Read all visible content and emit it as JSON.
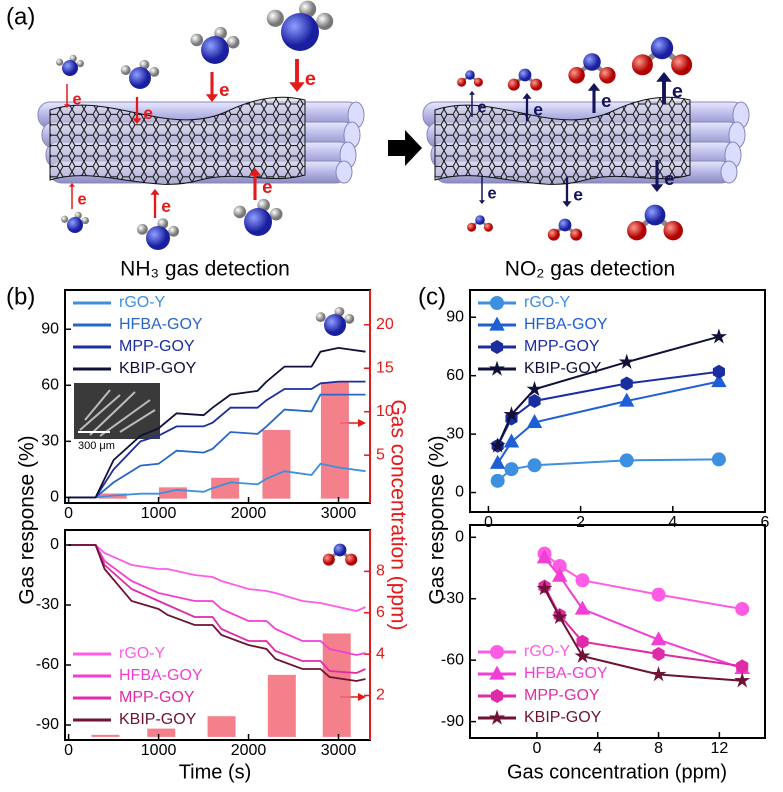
{
  "figure": {
    "panel_labels": [
      "(a)",
      "(b)",
      "(c)"
    ],
    "captions": [
      "NH₃ gas detection",
      "NO₂ gas detection"
    ],
    "electron_label": "e",
    "inset_scale": "300 μm"
  },
  "chart_data": [
    {
      "type": "line",
      "ylabel": "Gas response (%)",
      "y2label": "Gas concentration (ppm)",
      "legend": "upper left",
      "x": [
        0,
        300,
        500,
        800,
        1000,
        1200,
        1500,
        1600,
        1800,
        2100,
        2200,
        2400,
        2700,
        2800,
        3000,
        3300
      ],
      "series": [
        {
          "name": "rGO-Y",
          "color": "#3d8fe0",
          "values": [
            0,
            0,
            1,
            2,
            2,
            4,
            3,
            5,
            8,
            7,
            10,
            14,
            12,
            18,
            16,
            14
          ]
        },
        {
          "name": "HFBA-GOY",
          "color": "#2a66c8",
          "values": [
            0,
            0,
            8,
            17,
            18,
            25,
            24,
            26,
            35,
            34,
            38,
            47,
            46,
            55,
            55,
            55
          ]
        },
        {
          "name": "MPP-GOY",
          "color": "#1a2ea0",
          "values": [
            0,
            0,
            15,
            30,
            33,
            38,
            38,
            40,
            48,
            48,
            52,
            58,
            58,
            61,
            62,
            62
          ]
        },
        {
          "name": "KBIP-GOY",
          "color": "#10103a",
          "values": [
            0,
            0,
            20,
            33,
            37,
            45,
            44,
            48,
            55,
            57,
            62,
            70,
            70,
            78,
            80,
            78
          ]
        }
      ],
      "bars": {
        "x": [
          490,
          1160,
          1740,
          2310,
          2960
        ],
        "values": [
          0.6,
          1.3,
          2.4,
          7.9,
          13.4
        ],
        "color": "#f26a78",
        "axis": "y2"
      },
      "xlim": [
        -40,
        3350
      ],
      "ylim": [
        -3,
        111
      ],
      "y2lim": [
        -0.5,
        24
      ],
      "xticks": [
        0,
        1000,
        2000,
        3000
      ],
      "yticks": [
        0,
        30,
        60,
        90
      ],
      "y2ticks": [
        5,
        10,
        15,
        20
      ]
    },
    {
      "type": "line",
      "xlabel": "Time (s)",
      "legend": "lower left",
      "x": [
        0,
        300,
        400,
        700,
        1000,
        1100,
        1400,
        1600,
        1700,
        2000,
        2200,
        2300,
        2600,
        2800,
        2900,
        3200,
        3300
      ],
      "series": [
        {
          "name": "rGO-Y",
          "color": "#ff5ce6",
          "values": [
            0,
            0,
            -4,
            -10,
            -12,
            -12,
            -15,
            -16,
            -18,
            -22,
            -23,
            -24,
            -28,
            -29,
            -30,
            -33,
            -31
          ]
        },
        {
          "name": "HFBA-GOY",
          "color": "#f33ed6",
          "values": [
            0,
            0,
            -8,
            -18,
            -24,
            -25,
            -28,
            -28,
            -32,
            -38,
            -38,
            -42,
            -48,
            -48,
            -52,
            -55,
            -54
          ]
        },
        {
          "name": "MPP-GOY",
          "color": "#e02aa8",
          "values": [
            0,
            0,
            -10,
            -22,
            -28,
            -30,
            -36,
            -36,
            -42,
            -48,
            -48,
            -53,
            -58,
            -58,
            -63,
            -64,
            -62
          ]
        },
        {
          "name": "KBIP-GOY",
          "color": "#6e1236",
          "values": [
            0,
            0,
            -12,
            -28,
            -32,
            -35,
            -40,
            -40,
            -45,
            -50,
            -52,
            -57,
            -62,
            -62,
            -66,
            -68,
            -67
          ]
        }
      ],
      "bars": {
        "x": [
          410,
          1030,
          1700,
          2370,
          2980
        ],
        "values": [
          0.1,
          0.4,
          1,
          3,
          5
        ],
        "color": "#f26a78",
        "axis": "y2"
      },
      "xlim": [
        -40,
        3350
      ],
      "ylim": [
        -97.5,
        7.5
      ],
      "y2lim": [
        -0.15,
        10
      ],
      "xticks": [
        0,
        1000,
        2000,
        3000
      ],
      "yticks": [
        -90,
        -60,
        -30,
        0
      ],
      "y2ticks": [
        2,
        4,
        6,
        8
      ]
    },
    {
      "type": "line",
      "ylabel": "Gas response (%)",
      "legend": "upper left",
      "x": [
        0.2,
        0.5,
        1,
        3,
        5
      ],
      "series": [
        {
          "name": "rGO-Y",
          "color": "#3d8fe0",
          "marker": "circle",
          "values": [
            6,
            12,
            14,
            16.5,
            17
          ]
        },
        {
          "name": "HFBA-GOY",
          "color": "#1f5fd6",
          "marker": "triangle",
          "values": [
            15,
            26,
            36,
            47,
            57
          ]
        },
        {
          "name": "MPP-GOY",
          "color": "#1a2ea0",
          "marker": "hexagon",
          "values": [
            24,
            38,
            47,
            56,
            62
          ]
        },
        {
          "name": "KBIP-GOY",
          "color": "#10103a",
          "marker": "star",
          "values": [
            24,
            40,
            53,
            67,
            80
          ]
        }
      ],
      "xlim": [
        -0.4,
        6
      ],
      "ylim": [
        -10,
        104
      ],
      "xticks": [
        0,
        2,
        4,
        6
      ],
      "yticks": [
        0,
        30,
        60,
        90
      ]
    },
    {
      "type": "line",
      "xlabel": "Gas concentration (ppm)",
      "legend": "lower left",
      "x": [
        0.5,
        1.5,
        3,
        8,
        13.5
      ],
      "series": [
        {
          "name": "rGO-Y",
          "color": "#ff5ce6",
          "marker": "circle",
          "values": [
            -8,
            -14,
            -21,
            -28,
            -35
          ]
        },
        {
          "name": "HFBA-GOY",
          "color": "#f33ed6",
          "marker": "triangle",
          "values": [
            -10,
            -19,
            -35,
            -50,
            -64
          ]
        },
        {
          "name": "MPP-GOY",
          "color": "#e02aa8",
          "marker": "hexagon",
          "values": [
            -24,
            -38,
            -51,
            -57,
            -63
          ]
        },
        {
          "name": "KBIP-GOY",
          "color": "#6e1236",
          "marker": "star",
          "values": [
            -25,
            -39,
            -58,
            -67,
            -70
          ]
        }
      ],
      "xlim": [
        -4.4,
        15
      ],
      "ylim": [
        -98,
        6
      ],
      "xticks": [
        0,
        4,
        8,
        12
      ],
      "yticks": [
        -90,
        -60,
        -30,
        0
      ]
    }
  ]
}
